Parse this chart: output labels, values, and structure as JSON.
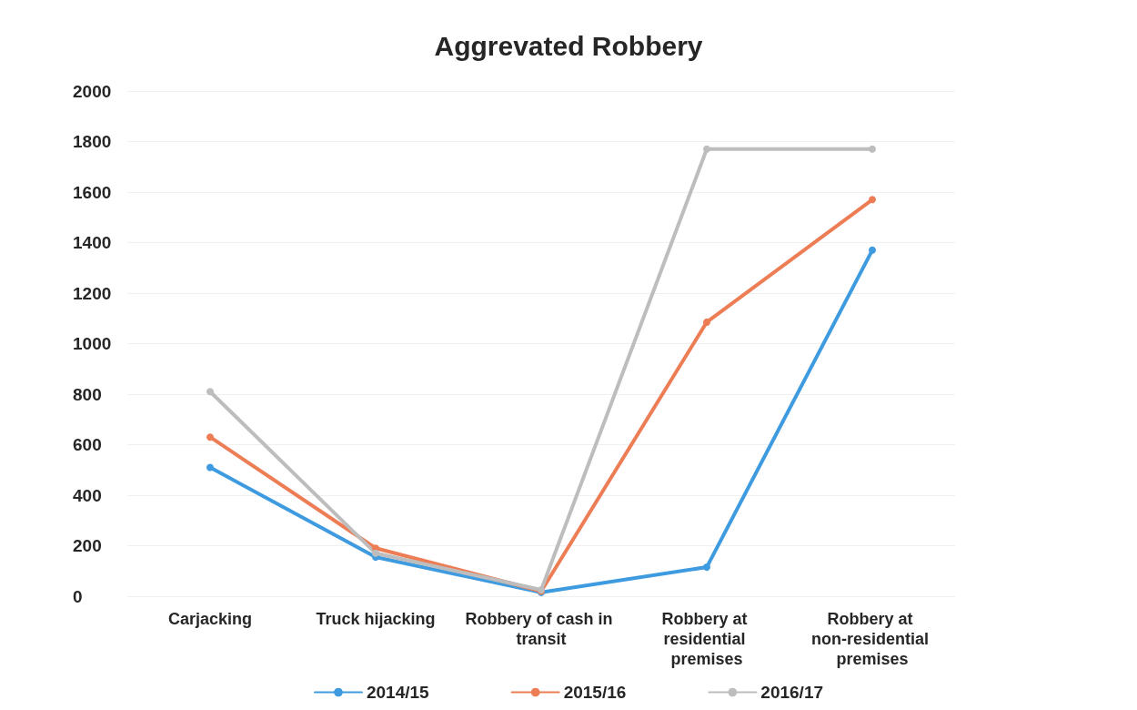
{
  "chart_data": {
    "type": "line",
    "title": "Aggrevated Robbery",
    "categories": [
      "Carjacking",
      "Truck hijacking",
      "Robbery of cash in transit",
      "Robbery at residential premises",
      "Robbery at non-residential premises"
    ],
    "series": [
      {
        "name": "2014/15",
        "color": "#3e9be0",
        "values": [
          510,
          155,
          15,
          115,
          1370
        ]
      },
      {
        "name": "2015/16",
        "color": "#ed7d55",
        "values": [
          630,
          190,
          20,
          1085,
          1570
        ]
      },
      {
        "name": "2016/17",
        "color": "#bdbdbd",
        "values": [
          810,
          170,
          25,
          1770,
          1770
        ]
      }
    ],
    "ylim": [
      0,
      2000
    ],
    "yticks": [
      0,
      200,
      400,
      600,
      800,
      1000,
      1200,
      1400,
      1600,
      1800,
      2000
    ],
    "grid": "y",
    "legend": "bottom",
    "marker": "circle",
    "line_style": "solid"
  }
}
